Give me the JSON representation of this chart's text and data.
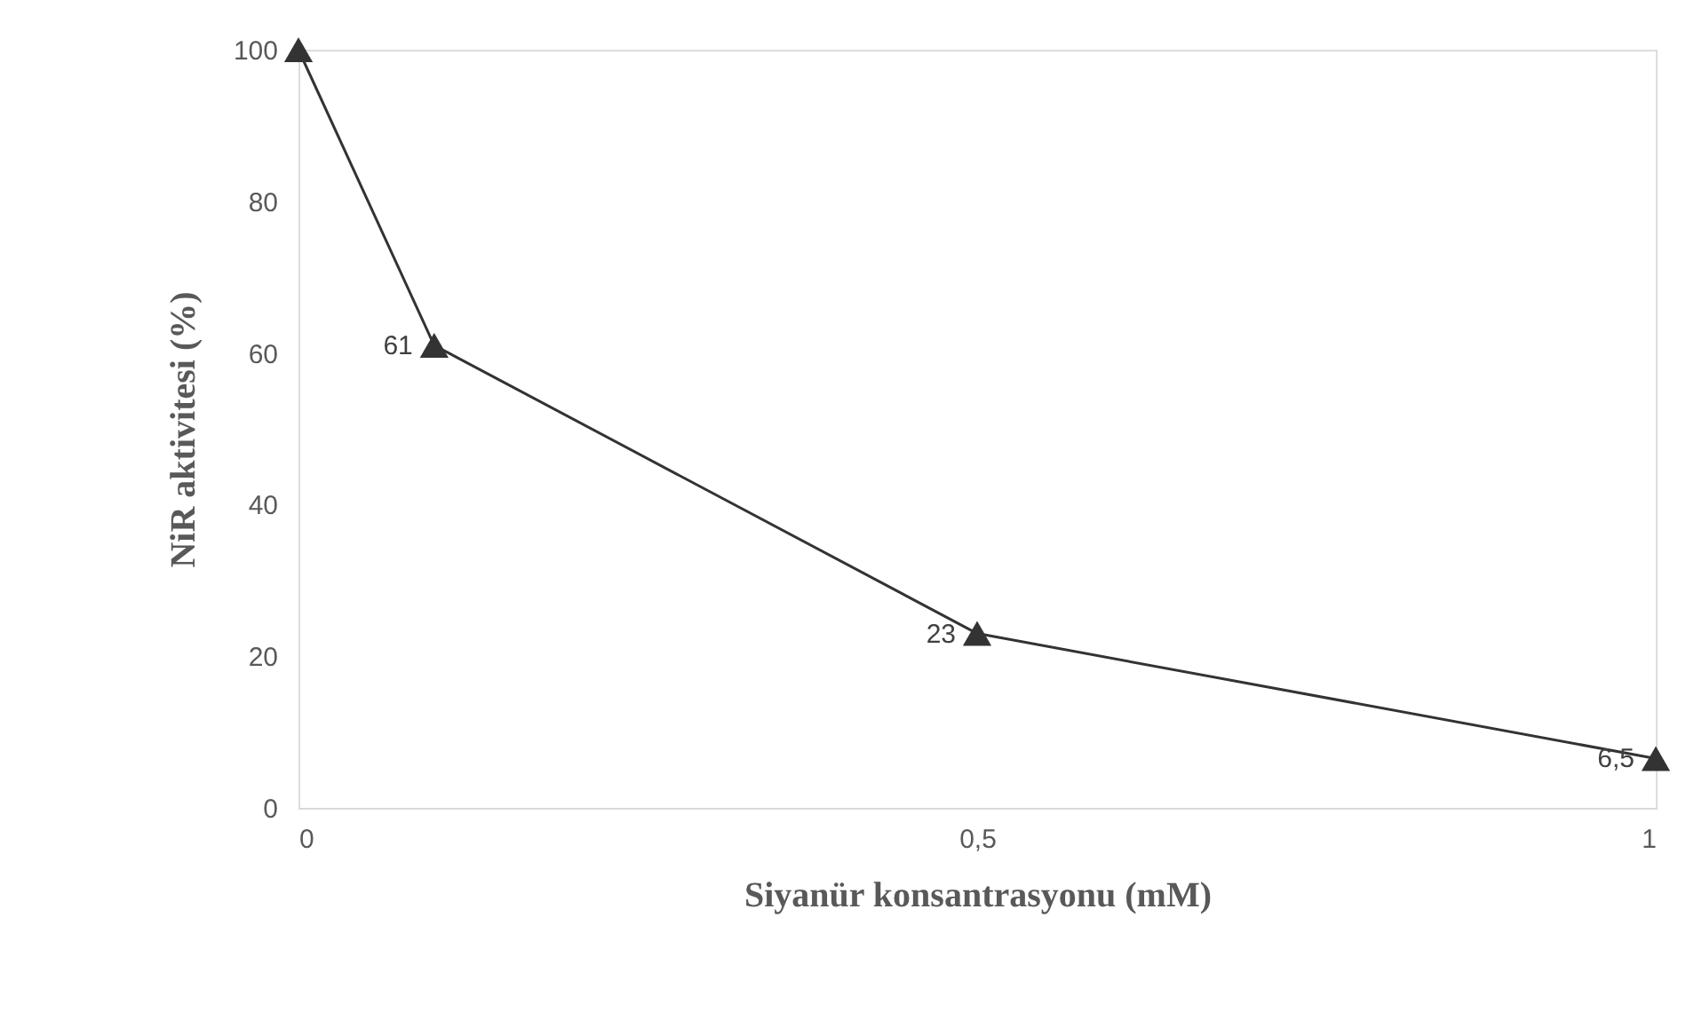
{
  "chart_data": {
    "type": "line",
    "xlabel": "Siyanür konsantrasyonu (mM)",
    "ylabel": "NiR aktivitesi (%)",
    "x": [
      0,
      0.1,
      0.5,
      1
    ],
    "values": [
      100,
      61,
      23,
      6.5
    ],
    "value_labels": [
      null,
      "61",
      "23",
      "6,5"
    ],
    "color": "#333333",
    "marker": "triangle",
    "line_style": "solid",
    "grid": false,
    "xlim": [
      0,
      1
    ],
    "ylim": [
      0,
      100
    ],
    "xticks": [
      0,
      {
        "value": 0.5,
        "label": "0,5"
      },
      1
    ],
    "yticks": [
      0,
      20,
      40,
      60,
      80,
      100
    ]
  }
}
